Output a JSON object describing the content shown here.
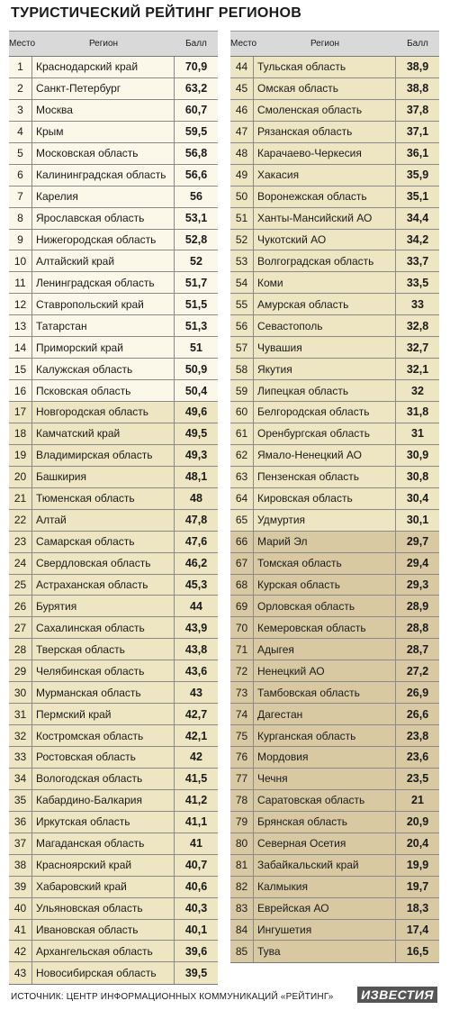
{
  "title": "ТУРИСТИЧЕСКИЙ РЕЙТИНГ РЕГИОНОВ",
  "headers": {
    "place": "Место",
    "region": "Регион",
    "score": "Балл"
  },
  "left_rows": [
    [
      "1",
      "Краснодарский край",
      "70,9"
    ],
    [
      "2",
      "Санкт-Петербург",
      "63,2"
    ],
    [
      "3",
      "Москва",
      "60,7"
    ],
    [
      "4",
      "Крым",
      "59,5"
    ],
    [
      "5",
      "Московская область",
      "56,8"
    ],
    [
      "6",
      "Калининградская область",
      "56,6"
    ],
    [
      "7",
      "Карелия",
      "56"
    ],
    [
      "8",
      "Ярославская область",
      "53,1"
    ],
    [
      "9",
      "Нижегородская область",
      "52,8"
    ],
    [
      "10",
      "Алтайский край",
      "52"
    ],
    [
      "11",
      "Ленинградская область",
      "51,7"
    ],
    [
      "12",
      "Ставропольский край",
      "51,5"
    ],
    [
      "13",
      "Татарстан",
      "51,3"
    ],
    [
      "14",
      "Приморский край",
      "51"
    ],
    [
      "15",
      "Калужская область",
      "50,9"
    ],
    [
      "16",
      "Псковская область",
      "50,4"
    ],
    [
      "17",
      "Новгородская область",
      "49,6"
    ],
    [
      "18",
      "Камчатский край",
      "49,5"
    ],
    [
      "19",
      "Владимирская область",
      "49,3"
    ],
    [
      "20",
      "Башкирия",
      "48,1"
    ],
    [
      "21",
      "Тюменская область",
      "48"
    ],
    [
      "22",
      "Алтай",
      "47,8"
    ],
    [
      "23",
      "Самарская область",
      "47,6"
    ],
    [
      "24",
      "Свердловская область",
      "46,2"
    ],
    [
      "25",
      "Астраханская область",
      "45,3"
    ],
    [
      "26",
      "Бурятия",
      "44"
    ],
    [
      "27",
      "Сахалинская область",
      "43,9"
    ],
    [
      "28",
      "Тверская область",
      "43,8"
    ],
    [
      "29",
      "Челябинская область",
      "43,6"
    ],
    [
      "30",
      "Мурманская область",
      "43"
    ],
    [
      "31",
      "Пермский край",
      "42,7"
    ],
    [
      "32",
      "Костромская область",
      "42,1"
    ],
    [
      "33",
      "Ростовская область",
      "42"
    ],
    [
      "34",
      "Вологодская область",
      "41,5"
    ],
    [
      "35",
      "Кабардино-Балкария",
      "41,2"
    ],
    [
      "36",
      "Иркутская область",
      "41,1"
    ],
    [
      "37",
      "Магаданская область",
      "41"
    ],
    [
      "38",
      "Красноярский край",
      "40,7"
    ],
    [
      "39",
      "Хабаровский край",
      "40,6"
    ],
    [
      "40",
      "Ульяновская область",
      "40,3"
    ],
    [
      "41",
      "Ивановская область",
      "40,1"
    ],
    [
      "42",
      "Архангельская область",
      "39,6"
    ],
    [
      "43",
      "Новосибирская область",
      "39,5"
    ]
  ],
  "right_rows": [
    [
      "44",
      "Тульская область",
      "38,9"
    ],
    [
      "45",
      "Омская область",
      "38,8"
    ],
    [
      "46",
      "Смоленская область",
      "37,8"
    ],
    [
      "47",
      "Рязанская область",
      "37,1"
    ],
    [
      "48",
      "Карачаево-Черкесия",
      "36,1"
    ],
    [
      "49",
      "Хакасия",
      "35,9"
    ],
    [
      "50",
      "Воронежская область",
      "35,1"
    ],
    [
      "51",
      "Ханты-Мансийский АО",
      "34,4"
    ],
    [
      "52",
      "Чукотский АО",
      "34,2"
    ],
    [
      "53",
      "Волгоградская область",
      "33,7"
    ],
    [
      "54",
      "Коми",
      "33,5"
    ],
    [
      "55",
      "Амурская область",
      "33"
    ],
    [
      "56",
      "Севастополь",
      "32,8"
    ],
    [
      "57",
      "Чувашия",
      "32,7"
    ],
    [
      "58",
      "Якутия",
      "32,1"
    ],
    [
      "59",
      "Липецкая область",
      "32"
    ],
    [
      "60",
      "Белгородская область",
      "31,8"
    ],
    [
      "61",
      "Оренбургская область",
      "31"
    ],
    [
      "62",
      "Ямало-Ненецкий АО",
      "30,9"
    ],
    [
      "63",
      "Пензенская область",
      "30,8"
    ],
    [
      "64",
      "Кировская область",
      "30,4"
    ],
    [
      "65",
      "Удмуртия",
      "30,1"
    ],
    [
      "66",
      "Марий Эл",
      "29,7"
    ],
    [
      "67",
      "Томская область",
      "29,4"
    ],
    [
      "68",
      "Курская область",
      "29,3"
    ],
    [
      "69",
      "Орловская область",
      "28,9"
    ],
    [
      "70",
      "Кемеровская область",
      "28,8"
    ],
    [
      "71",
      "Адыгея",
      "28,7"
    ],
    [
      "72",
      "Ненецкий АО",
      "27,2"
    ],
    [
      "73",
      "Тамбовская область",
      "26,9"
    ],
    [
      "74",
      "Дагестан",
      "26,6"
    ],
    [
      "75",
      "Курганская область",
      "23,8"
    ],
    [
      "76",
      "Мордовия",
      "23,6"
    ],
    [
      "77",
      "Чечня",
      "23,5"
    ],
    [
      "78",
      "Саратовская область",
      "21"
    ],
    [
      "79",
      "Брянская область",
      "20,9"
    ],
    [
      "80",
      "Северная Осетия",
      "20,4"
    ],
    [
      "81",
      "Забайкальский край",
      "19,9"
    ],
    [
      "82",
      "Калмыкия",
      "19,7"
    ],
    [
      "83",
      "Еврейская АО",
      "18,3"
    ],
    [
      "84",
      "Ингушетия",
      "17,4"
    ],
    [
      "85",
      "Тува",
      "16,5"
    ]
  ],
  "tier_colors": {
    "top": "#fbf8e9",
    "middle": "#eee6c2",
    "bottom": "#d8c9a3"
  },
  "footer": "ИСТОЧНИК: ЦЕНТР ИНФОРМАЦИОННЫХ КОММУНИКАЦИЙ «РЕЙТИНГ»",
  "logo": "ИЗВЕСТИЯ"
}
